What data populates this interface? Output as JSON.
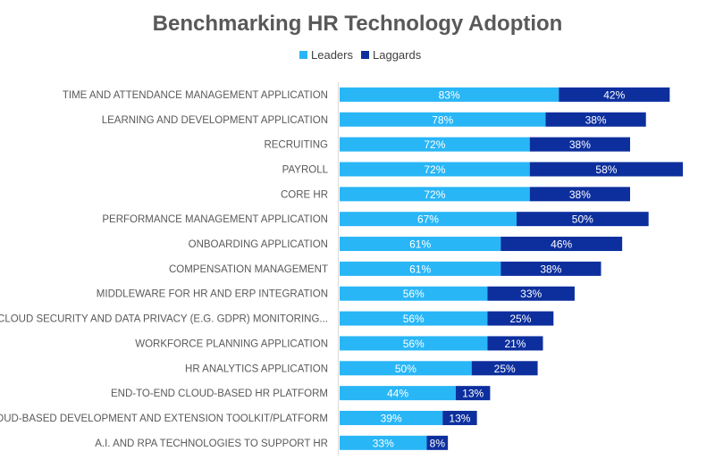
{
  "chart_data": {
    "type": "bar",
    "orientation": "horizontal",
    "stacked": true,
    "title": "Benchmarking HR Technology Adoption",
    "legend_position": "top",
    "categories": [
      "TIME AND ATTENDANCE MANAGEMENT APPLICATION",
      "LEARNING AND DEVELOPMENT APPLICATION",
      "RECRUITING",
      "PAYROLL",
      "CORE HR",
      "PERFORMANCE MANAGEMENT APPLICATION",
      "ONBOARDING APPLICATION",
      "COMPENSATION MANAGEMENT",
      "MIDDLEWARE FOR HR AND ERP INTEGRATION",
      "CLOUD SECURITY AND DATA PRIVACY (E.G. GDPR) MONITORING...",
      "WORKFORCE PLANNING APPLICATION",
      "HR ANALYTICS APPLICATION",
      "END-TO-END CLOUD-BASED HR PLATFORM",
      "CLOUD-BASED DEVELOPMENT AND EXTENSION TOOLKIT/PLATFORM",
      "A.I. AND RPA TECHNOLOGIES TO SUPPORT HR"
    ],
    "series": [
      {
        "name": "Leaders",
        "color": "#29B6F6",
        "values": [
          83,
          78,
          72,
          72,
          72,
          67,
          61,
          61,
          56,
          56,
          56,
          50,
          44,
          39,
          33
        ],
        "labels": [
          "83%",
          "78%",
          "72%",
          "72%",
          "72%",
          "67%",
          "61%",
          "61%",
          "56%",
          "56%",
          "56%",
          "50%",
          "44%",
          "39%",
          "33%"
        ]
      },
      {
        "name": "Laggards",
        "color": "#0D2F9E",
        "values": [
          42,
          38,
          38,
          58,
          38,
          50,
          46,
          38,
          33,
          25,
          21,
          25,
          13,
          13,
          8
        ],
        "labels": [
          "42%",
          "38%",
          "38%",
          "58%",
          "38%",
          "50%",
          "46%",
          "38%",
          "33%",
          "25%",
          "21%",
          "25%",
          "13%",
          "13%",
          "8%"
        ]
      }
    ],
    "xlim": [
      0,
      132
    ]
  }
}
